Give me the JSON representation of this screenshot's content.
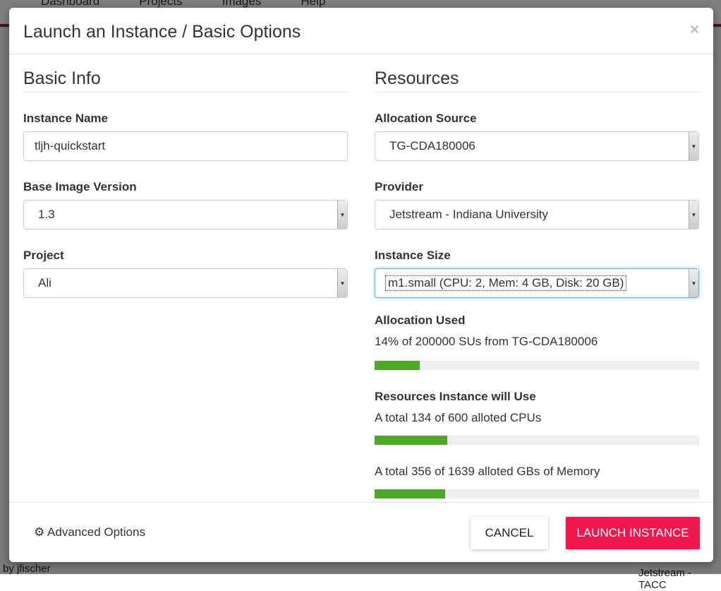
{
  "background": {
    "nav": [
      "Dashboard",
      "Projects",
      "Images",
      "Help"
    ],
    "author": "by jfischer",
    "provider": "Jetstream - TACC"
  },
  "modal": {
    "title": "Launch an Instance / Basic Options",
    "close": "×"
  },
  "basic": {
    "heading": "Basic Info",
    "instance_name": {
      "label": "Instance Name",
      "value": "tljh-quickstart"
    },
    "base_image": {
      "label": "Base Image Version",
      "value": "1.3"
    },
    "project": {
      "label": "Project",
      "value": "Ali"
    }
  },
  "resources": {
    "heading": "Resources",
    "allocation_source": {
      "label": "Allocation Source",
      "value": "TG-CDA180006"
    },
    "provider": {
      "label": "Provider",
      "value": "Jetstream - Indiana University"
    },
    "instance_size": {
      "label": "Instance Size",
      "value": "m1.small (CPU: 2, Mem: 4 GB, Disk: 20 GB)"
    },
    "allocation_used": {
      "label": "Allocation Used",
      "text": "14% of 200000 SUs from TG-CDA180006",
      "percent": 14
    },
    "instance_use": {
      "label": "Resources Instance will Use",
      "cpu_text": "A total 134 of 600 alloted CPUs",
      "cpu_percent": 22.3,
      "mem_text": "A total 356 of 1639 alloted GBs of Memory",
      "mem_percent": 21.7
    }
  },
  "footer": {
    "advanced": "Advanced Options",
    "cancel": "CANCEL",
    "launch": "LAUNCH INSTANCE"
  },
  "colors": {
    "accent": "#f0174c",
    "progress": "#4ca826"
  }
}
